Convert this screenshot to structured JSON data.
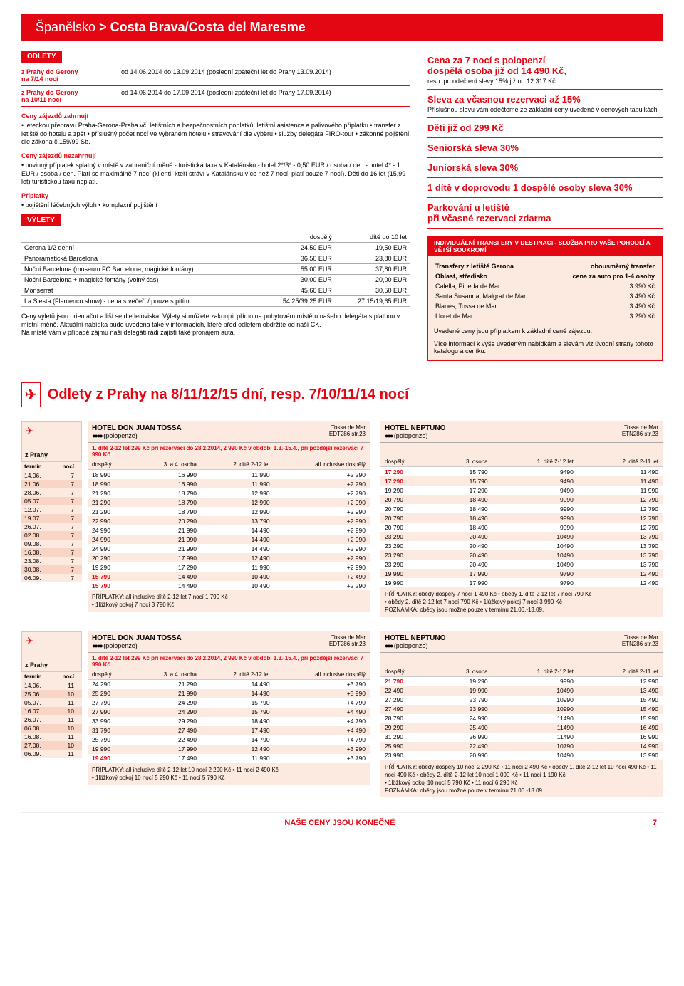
{
  "header": {
    "country": "Španělsko",
    "region": "> Costa Brava/Costa del Maresme"
  },
  "odlety_label": "ODLETY",
  "departures": [
    {
      "from": "z Prahy do Gerony",
      "nights": "na 7/14 nocí",
      "info": "od 14.06.2014 do 13.09.2014 (poslední zpáteční let do Prahy 13.09.2014)"
    },
    {
      "from": "z Prahy do Gerony",
      "nights": "na 10/11 nocí",
      "info": "od 14.06.2014 do 17.09.2014 (poslední zpáteční let do Prahy 17.09.2014)"
    }
  ],
  "includes": {
    "title": "Ceny zájezdů zahrnují",
    "text": "• leteckou přepravu Praha-Gerona-Praha vč. letištních a bezpečnostních poplatků, letištní asistence a palivového příplatku • transfer z letiště do hotelu a zpět • příslušný počet nocí ve vybraném hotelu • stravování dle výběru • služby delegáta FIRO-tour • zákonné pojištění dle zákona č.159/99 Sb."
  },
  "excludes": {
    "title": "Ceny zájezdů nezahrnují",
    "text": "• povinný příplatek splatný v místě v zahraniční měně - turistická taxa v Katalánsku - hotel 2*/3* - 0,50 EUR / osoba / den - hotel 4* - 1 EUR / osoba / den. Platí se maximálně 7 nocí (klienti, kteří stráví v Katalánsku více než 7 nocí, platí pouze 7 nocí). Děti do 16 let (15,99 let) turistickou taxu neplatí."
  },
  "surcharges": {
    "title": "Příplatky",
    "text": "• pojištění léčebných výloh • komplexní pojištění"
  },
  "excursions_label": "VÝLETY",
  "exc_hdr": {
    "adult": "dospělý",
    "child": "dítě do 10 let"
  },
  "excursions": [
    {
      "name": "Gerona 1/2 denní",
      "a": "24,50 EUR",
      "c": "19,50 EUR"
    },
    {
      "name": "Panoramatická Barcelona",
      "a": "36,50 EUR",
      "c": "23,80 EUR"
    },
    {
      "name": "Noční Barcelona (museum FC Barcelona, magické fontány)",
      "a": "55,00 EUR",
      "c": "37,80 EUR"
    },
    {
      "name": "Noční Barcelona + magické fontány (volný čas)",
      "a": "30,00 EUR",
      "c": "20,00 EUR"
    },
    {
      "name": "Monserrat",
      "a": "45,60 EUR",
      "c": "30,50 EUR"
    },
    {
      "name": "La Siesta (Flamenco show) - cena s večeří / pouze s pitím",
      "a": "54,25/39,25 EUR",
      "c": "27,15/19,65 EUR"
    }
  ],
  "exc_note": "Ceny výletů jsou orientační a liší se dle letoviska. Výlety si můžete zakoupit přímo na pobytovém místě u našeho delegáta s platbou v místní měně. Aktuální nabídka bude uvedena také v informacích, které před odletem obdržíte od naší CK.\nNa místě vám v případě zájmu naši delegáti rádi zajistí také pronájem auta.",
  "promos": [
    {
      "t": "Cena za 7 nocí s polopenzí\ndospělá osoba již od 14 490 Kč,",
      "s": "resp. po odečtení slevy 15% již od 12 317 Kč"
    },
    {
      "t": "Sleva za včasnou rezervaci až 15%",
      "s": "Příslušnou slevu vám odečteme ze základní ceny uvedené v cenových tabulkách"
    },
    {
      "t": "Děti již od 299 Kč",
      "s": ""
    },
    {
      "t": "Seniorská sleva 30%",
      "s": ""
    },
    {
      "t": "Juniorská sleva 30%",
      "s": ""
    },
    {
      "t": "1 dítě v doprovodu 1 dospělé osoby sleva 30%",
      "s": ""
    },
    {
      "t": "Parkování u letiště\npři včasné rezervaci zdarma",
      "s": ""
    }
  ],
  "transfer": {
    "hdr": "INDIVIDUÁLNÍ TRANSFERY V DESTINACI - SLUŽBA PRO VAŠE POHODLÍ A VĚTŠÍ SOUKROMÍ",
    "col1": "Transfery z letiště Gerona",
    "col2": "obousměrný transfer",
    "col3": "Oblast, středisko",
    "col4": "cena za auto pro 1-4 osoby",
    "rows": [
      {
        "n": "Calella, Pineda de Mar",
        "p": "3 990 Kč"
      },
      {
        "n": "Santa Susanna, Malgrat de Mar",
        "p": "3 490 Kč"
      },
      {
        "n": "Blanes, Tossa de Mar",
        "p": "3 490 Kč"
      },
      {
        "n": "Lloret de Mar",
        "p": "3 290 Kč"
      }
    ],
    "n1": "Uvedené ceny jsou příplatkem k základní ceně zájezdu.",
    "n2": "Více informací k výše uvedeným nabídkám a slevám viz úvodní strany tohoto katalogu a ceníku."
  },
  "big_title": "Odlety z Prahy na 8/11/12/15 dní, resp. 7/10/11/14 nocí",
  "from_prague": "z Prahy",
  "col_term": "termín",
  "col_nights": "nocí",
  "dates7": [
    {
      "d": "14.06.",
      "n": "7"
    },
    {
      "d": "21.06.",
      "n": "7"
    },
    {
      "d": "28.06.",
      "n": "7"
    },
    {
      "d": "05.07.",
      "n": "7"
    },
    {
      "d": "12.07.",
      "n": "7"
    },
    {
      "d": "19.07.",
      "n": "7"
    },
    {
      "d": "26.07.",
      "n": "7"
    },
    {
      "d": "02.08.",
      "n": "7"
    },
    {
      "d": "09.08.",
      "n": "7"
    },
    {
      "d": "16.08.",
      "n": "7"
    },
    {
      "d": "23.08.",
      "n": "7"
    },
    {
      "d": "30.08.",
      "n": "7"
    },
    {
      "d": "06.09.",
      "n": "7"
    }
  ],
  "dates10": [
    {
      "d": "14.06.",
      "n": "11"
    },
    {
      "d": "25.06.",
      "n": "10"
    },
    {
      "d": "05.07.",
      "n": "11"
    },
    {
      "d": "16.07.",
      "n": "10"
    },
    {
      "d": "26.07.",
      "n": "11"
    },
    {
      "d": "06.08.",
      "n": "10"
    },
    {
      "d": "16.08.",
      "n": "11"
    },
    {
      "d": "27.08.",
      "n": "10"
    },
    {
      "d": "06.09.",
      "n": "11"
    }
  ],
  "hotel1": {
    "name": "HOTEL DON JUAN TOSSA",
    "stars": "●●●●",
    "board": "(polopenze)",
    "loc": "Tossa de Mar",
    "code": "EDT286 str.23",
    "promo": "1. dítě 2-12 let 299 Kč při rezervaci do 28.2.2014, 2 990 Kč v období 1.3.-15.4., při pozdější rezervaci 7 990 Kč",
    "cols": [
      "dospělý",
      "3. a 4. osoba",
      "2. dítě 2-12 let",
      "all inclusive dospělý"
    ],
    "rows7": [
      [
        "18 990",
        "16 990",
        "11 990",
        "+2 290"
      ],
      [
        "18 990",
        "16 990",
        "11 990",
        "+2 290"
      ],
      [
        "21 290",
        "18 790",
        "12 990",
        "+2 790"
      ],
      [
        "21 290",
        "18 790",
        "12 990",
        "+2 990"
      ],
      [
        "21 290",
        "18 790",
        "12 990",
        "+2 990"
      ],
      [
        "22 990",
        "20 290",
        "13 790",
        "+2 990"
      ],
      [
        "24 990",
        "21 990",
        "14 490",
        "+2 990"
      ],
      [
        "24 990",
        "21 990",
        "14 490",
        "+2 990"
      ],
      [
        "24 990",
        "21 990",
        "14 490",
        "+2 990"
      ],
      [
        "20 290",
        "17 990",
        "12 490",
        "+2 990"
      ],
      [
        "19 290",
        "17 290",
        "11 990",
        "+2 990"
      ],
      [
        "15 790",
        "14 490",
        "10 490",
        "+2 490"
      ],
      [
        "15 790",
        "14 490",
        "10 490",
        "+2 290"
      ]
    ],
    "hl7": [
      11,
      12
    ],
    "note7": "PŘÍPLATKY: all inclusive dítě 2-12 let 7 nocí 1 790 Kč\n• 1lůžkový pokoj 7 nocí 3 790 Kč",
    "rows10": [
      [
        "24 290",
        "21 290",
        "14 490",
        "+3 790"
      ],
      [
        "25 290",
        "21 990",
        "14 490",
        "+3 990"
      ],
      [
        "27 790",
        "24 290",
        "15 790",
        "+4 790"
      ],
      [
        "27 990",
        "24 290",
        "15 790",
        "+4 490"
      ],
      [
        "33 990",
        "29 290",
        "18 490",
        "+4 790"
      ],
      [
        "31 790",
        "27 490",
        "17 490",
        "+4 490"
      ],
      [
        "25 790",
        "22 490",
        "14 790",
        "+4 790"
      ],
      [
        "19 990",
        "17 990",
        "12 490",
        "+3 990"
      ],
      [
        "19 490",
        "17 490",
        "11 990",
        "+3 790"
      ]
    ],
    "hl10": [
      8
    ],
    "note10": "PŘÍPLATKY: all inclusive dítě 2-12 let 10 nocí 2 290 Kč • 11 nocí 2 490 Kč\n• 1lůžkový pokoj 10 nocí 5 290 Kč • 11 nocí 5 790 Kč"
  },
  "hotel2": {
    "name": "HOTEL NEPTUNO",
    "stars": "●●●",
    "board": "(polopenze)",
    "loc": "Tossa de Mar",
    "code": "ETN286 str.23",
    "cols": [
      "dospělý",
      "3. osoba",
      "1. dítě 2-12 let",
      "2. dítě 2-11 let"
    ],
    "rows7": [
      [
        "17 290",
        "15 790",
        "9490",
        "11 490"
      ],
      [
        "17 290",
        "15 790",
        "9490",
        "11 490"
      ],
      [
        "19 290",
        "17 290",
        "9490",
        "11 990"
      ],
      [
        "20 790",
        "18 490",
        "9990",
        "12 790"
      ],
      [
        "20 790",
        "18 490",
        "9990",
        "12 790"
      ],
      [
        "20 790",
        "18 490",
        "9990",
        "12 790"
      ],
      [
        "20 790",
        "18 490",
        "9990",
        "12 790"
      ],
      [
        "23 290",
        "20 490",
        "10490",
        "13 790"
      ],
      [
        "23 290",
        "20 490",
        "10490",
        "13 790"
      ],
      [
        "23 290",
        "20 490",
        "10490",
        "13 790"
      ],
      [
        "23 290",
        "20 490",
        "10490",
        "13 790"
      ],
      [
        "19 990",
        "17 990",
        "9790",
        "12 490"
      ],
      [
        "19 990",
        "17 990",
        "9790",
        "12 490"
      ]
    ],
    "hl7": [
      0,
      1
    ],
    "note7": "PŘÍPLATKY: obědy dospělý 7 nocí 1 490 Kč • obědy 1. dítě 2-12 let 7 nocí 790 Kč\n• obědy 2. dítě 2-12 let 7 nocí 790 Kč • 1lůžkový pokoj 7 nocí 3 990 Kč\nPOZNÁMKA: obědy jsou možné pouze v termínu 21.06.-13.09.",
    "rows10": [
      [
        "21 790",
        "19 290",
        "9990",
        "12 990"
      ],
      [
        "22 490",
        "19 990",
        "10490",
        "13 490"
      ],
      [
        "27 290",
        "23 790",
        "10990",
        "15 490"
      ],
      [
        "27 490",
        "23 990",
        "10990",
        "15 490"
      ],
      [
        "28 790",
        "24 990",
        "11490",
        "15 990"
      ],
      [
        "29 290",
        "25 490",
        "11490",
        "16 490"
      ],
      [
        "31 290",
        "26 990",
        "11490",
        "16 990"
      ],
      [
        "25 990",
        "22 490",
        "10790",
        "14 990"
      ],
      [
        "23 990",
        "20 990",
        "10490",
        "13 990"
      ]
    ],
    "hl10": [
      0
    ],
    "note10": "PŘÍPLATKY: obědy dospělý 10 nocí 2 290 Kč • 11 nocí 2 490 Kč • obědy 1. dítě 2-12 let 10 nocí 490 Kč • 11 nocí 490 Kč • obědy 2. dítě 2-12 let 10 nocí 1 090 Kč • 11 nocí 1 190 Kč\n• 1lůžkový pokoj 10 nocí 5 790 Kč • 11 nocí 6 290 Kč\nPOZNÁMKA: obědy jsou možné pouze v termínu 21.06.-13.09."
  },
  "footer": {
    "text": "NAŠE CENY JSOU KONEČNÉ",
    "page": "7"
  }
}
